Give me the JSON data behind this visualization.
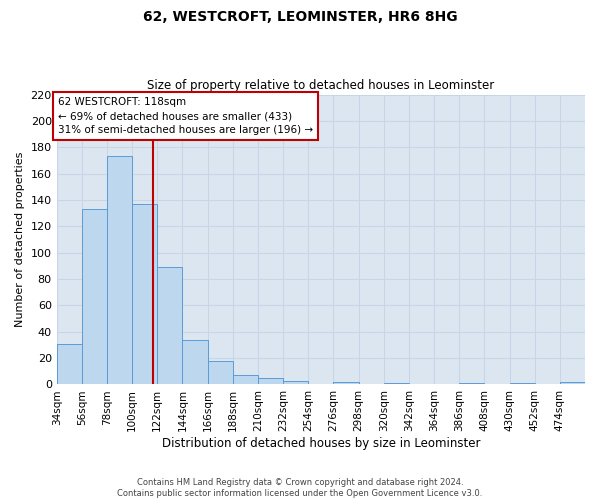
{
  "title": "62, WESTCROFT, LEOMINSTER, HR6 8HG",
  "subtitle": "Size of property relative to detached houses in Leominster",
  "xlabel": "Distribution of detached houses by size in Leominster",
  "ylabel": "Number of detached properties",
  "bin_labels": [
    "34sqm",
    "56sqm",
    "78sqm",
    "100sqm",
    "122sqm",
    "144sqm",
    "166sqm",
    "188sqm",
    "210sqm",
    "232sqm",
    "254sqm",
    "276sqm",
    "298sqm",
    "320sqm",
    "342sqm",
    "364sqm",
    "386sqm",
    "408sqm",
    "430sqm",
    "452sqm",
    "474sqm"
  ],
  "bin_edges": [
    34,
    56,
    78,
    100,
    122,
    144,
    166,
    188,
    210,
    232,
    254,
    276,
    298,
    320,
    342,
    364,
    386,
    408,
    430,
    452,
    474,
    496
  ],
  "bar_heights": [
    31,
    133,
    173,
    137,
    89,
    34,
    18,
    7,
    5,
    3,
    0,
    2,
    0,
    1,
    0,
    0,
    1,
    0,
    1,
    0,
    2
  ],
  "bar_color": "#bdd7ee",
  "bar_edge_color": "#5b9bd5",
  "property_value": 118,
  "vline_color": "#c00000",
  "annotation_box_color": "#c00000",
  "annotation_title": "62 WESTCROFT: 118sqm",
  "annotation_line1": "← 69% of detached houses are smaller (433)",
  "annotation_line2": "31% of semi-detached houses are larger (196) →",
  "ylim": [
    0,
    220
  ],
  "yticks": [
    0,
    20,
    40,
    60,
    80,
    100,
    120,
    140,
    160,
    180,
    200,
    220
  ],
  "grid_color": "#c8d4e8",
  "bg_color": "#dce6f0",
  "footer_line1": "Contains HM Land Registry data © Crown copyright and database right 2024.",
  "footer_line2": "Contains public sector information licensed under the Open Government Licence v3.0."
}
